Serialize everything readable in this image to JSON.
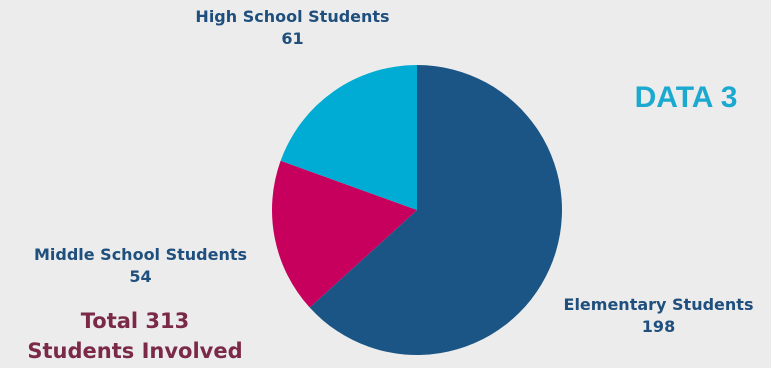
{
  "chart_data": {
    "type": "pie",
    "title": "DATA 3",
    "categories": [
      "Elementary Students",
      "Middle School Students",
      "High School Students"
    ],
    "values": [
      198,
      54,
      61
    ],
    "colors": [
      "#1a5585",
      "#c8005d",
      "#00acd3"
    ],
    "start": "top, clockwise",
    "labels": [
      {
        "name": "Elementary Students",
        "value": "198"
      },
      {
        "name": "Middle School Students",
        "value": "54"
      },
      {
        "name": "High School Students",
        "value": "61"
      }
    ],
    "annotation": {
      "line1": "Total 313",
      "line2": "Students Involved"
    }
  },
  "colors": {
    "label_text": "#1f4f7d",
    "heading": "#1ba9d0",
    "total_text": "#7a2a47",
    "background": "#ececec"
  }
}
